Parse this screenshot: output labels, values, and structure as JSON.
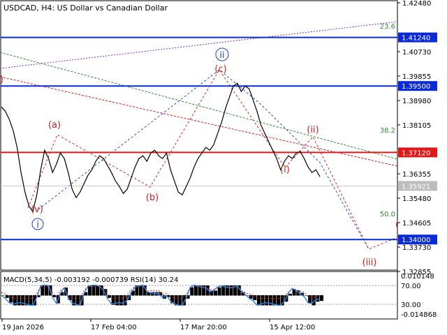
{
  "header": {
    "symbol": "USDCAD",
    "timeframe": "H4",
    "description": "US Dollar vs Canadian Dollar"
  },
  "colors": {
    "primary_level": "#0a2ad8",
    "resistance_level": "#e01818",
    "fib_level": "#2e8b2e",
    "wave_label": "#c2231e",
    "macd_hist": "#000000",
    "rsi_line": "#2c86e8"
  },
  "price_axis": {
    "ticks": [
      "1.42480",
      "1.40730",
      "1.39855",
      "1.38980",
      "1.38105",
      "1.36355",
      "1.35480",
      "1.34605",
      "1.33730",
      "1.32855"
    ]
  },
  "levels": [
    {
      "price": "1.41240",
      "style": "blue"
    },
    {
      "price": "1.39500",
      "style": "blue"
    },
    {
      "price": "1.37120",
      "style": "red"
    },
    {
      "price": "1.35921",
      "style": "current"
    },
    {
      "price": "1.34000",
      "style": "blue"
    }
  ],
  "fib_labels": [
    "23.6",
    "38.2",
    "50.0"
  ],
  "wave_labels": [
    "(a)",
    "(b)",
    "(c)",
    "(v)",
    "ii",
    "i",
    "(i)",
    "(ii)",
    "(iii)"
  ],
  "macd": {
    "label": "MACD(5,34,5) -0.003192 -0.000739 RSI(14) 30.24",
    "axis_ticks": [
      "0.010148",
      "70.00",
      "30.00",
      "-0.014868"
    ]
  },
  "time_axis": {
    "labels": [
      "19 Jan 2026",
      "17 Feb 04:00",
      "17 Mar 20:00",
      "15 Apr 12:00"
    ]
  },
  "chart_data": {
    "type": "line",
    "series": [
      {
        "name": "USDCAD",
        "values": [
          1.3875,
          1.386,
          1.383,
          1.379,
          1.373,
          1.364,
          1.357,
          1.352,
          1.35,
          1.356,
          1.365,
          1.372,
          1.369,
          1.364,
          1.367,
          1.371,
          1.369,
          1.364,
          1.358,
          1.355,
          1.357,
          1.36,
          1.363,
          1.365,
          1.368,
          1.37,
          1.369,
          1.3665,
          1.364,
          1.361,
          1.359,
          1.3565,
          1.358,
          1.362,
          1.366,
          1.369,
          1.37,
          1.368,
          1.371,
          1.372,
          1.37,
          1.369,
          1.371,
          1.365,
          1.361,
          1.357,
          1.356,
          1.359,
          1.362,
          1.366,
          1.369,
          1.371,
          1.373,
          1.372,
          1.374,
          1.378,
          1.382,
          1.387,
          1.391,
          1.395,
          1.396,
          1.393,
          1.395,
          1.394,
          1.39,
          1.386,
          1.381,
          1.378,
          1.375,
          1.372,
          1.369,
          1.365,
          1.368,
          1.37,
          1.369,
          1.371,
          1.3715,
          1.369,
          1.366,
          1.364,
          1.365,
          1.3625
        ]
      }
    ]
  }
}
